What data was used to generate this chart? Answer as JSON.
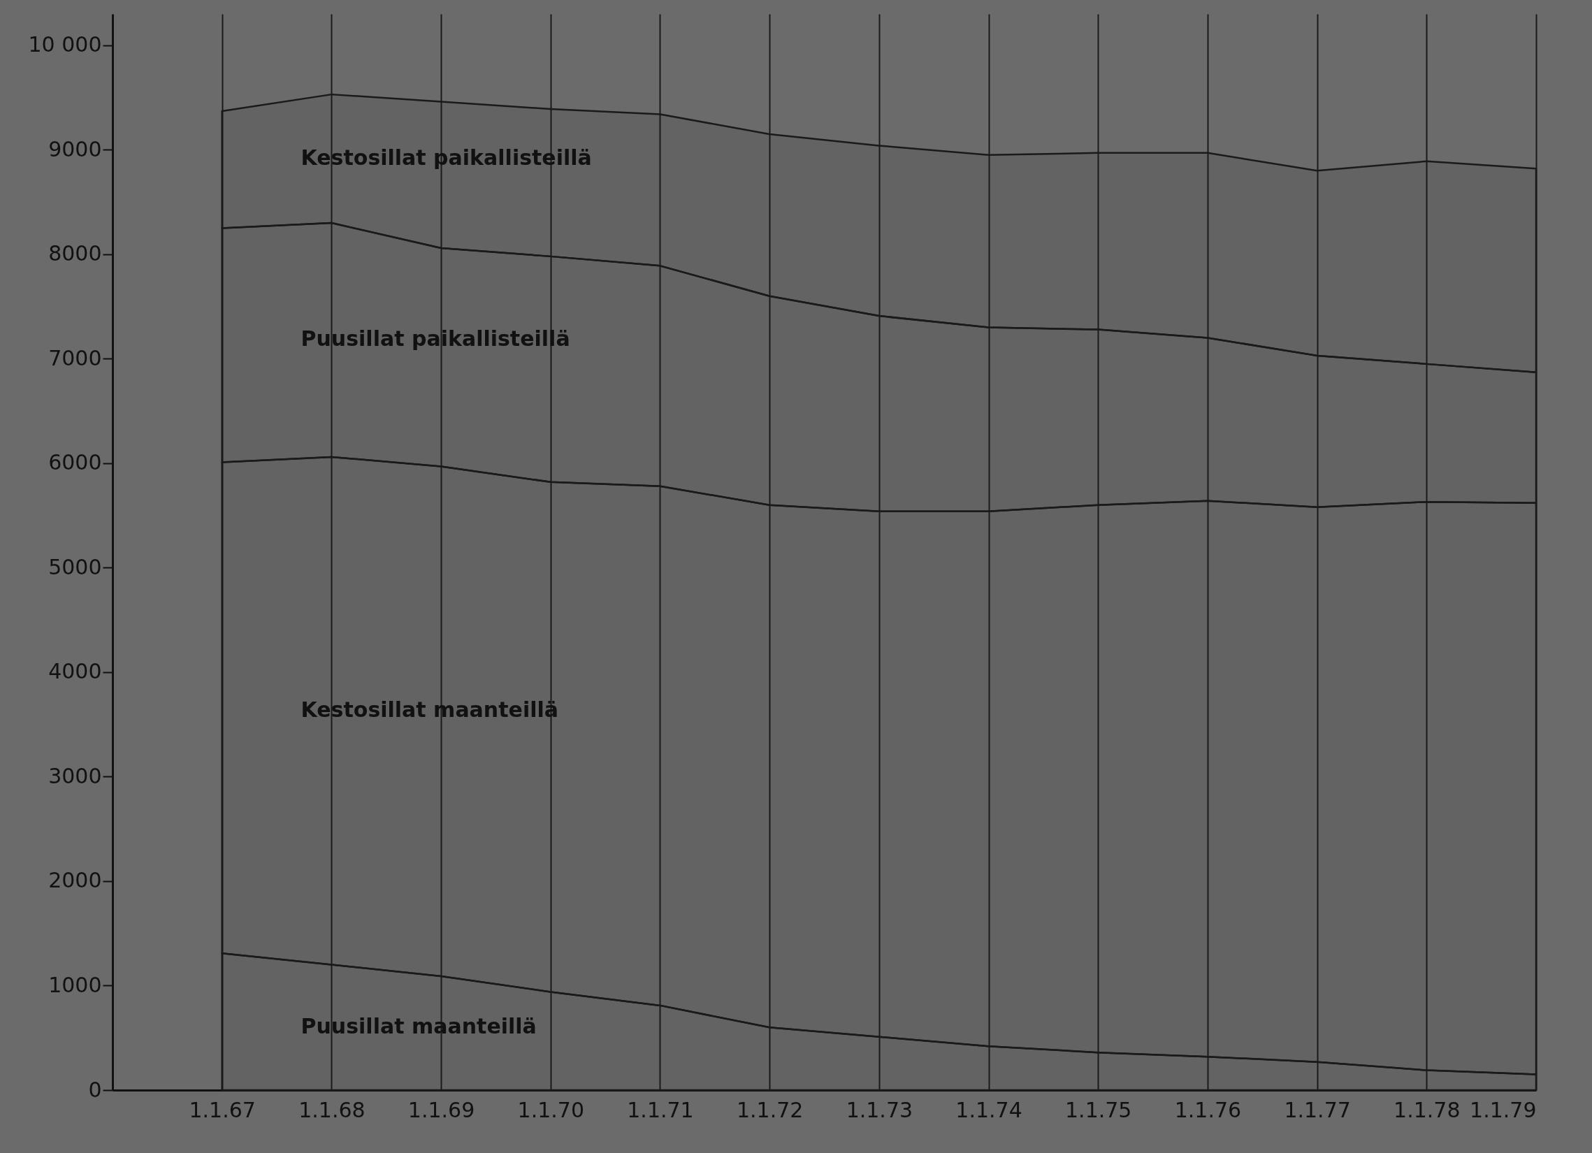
{
  "chart_data": {
    "type": "area",
    "stacked": true,
    "categories": [
      "1.1.67",
      "1.1.68",
      "1.1.69",
      "1.1.70",
      "1.1.71",
      "1.1.72",
      "1.1.73",
      "1.1.74",
      "1.1.75",
      "1.1.76",
      "1.1.77",
      "1.1.78",
      "1.1.79"
    ],
    "series": [
      {
        "name": "Puusillat maanteillä",
        "color": "#1a1a1a",
        "values": [
          1310,
          1200,
          1090,
          940,
          810,
          600,
          510,
          420,
          360,
          320,
          270,
          190,
          150
        ]
      },
      {
        "name": "Kestosillat maanteillä",
        "color": "#1a1a1a",
        "values": [
          4700,
          4860,
          4880,
          4880,
          4970,
          5000,
          5030,
          5120,
          5240,
          5320,
          5310,
          5440,
          5470
        ]
      },
      {
        "name": "Puusillat paikallisteillä",
        "color": "#1a1a1a",
        "values": [
          2240,
          2240,
          2090,
          2160,
          2110,
          2000,
          1870,
          1760,
          1680,
          1560,
          1450,
          1320,
          1250
        ]
      },
      {
        "name": "Kestosillat paikallisteillä",
        "color": "#1a1a1a",
        "values": [
          1120,
          1230,
          1400,
          1410,
          1450,
          1550,
          1630,
          1650,
          1690,
          1770,
          1770,
          1940,
          1950
        ]
      }
    ],
    "ylim": [
      0,
      10300
    ],
    "yticks": [
      0,
      1000,
      2000,
      3000,
      4000,
      5000,
      6000,
      7000,
      8000,
      9000,
      {
        "value": 10000,
        "label": "10 000"
      }
    ],
    "grid": "x",
    "legend": false
  }
}
